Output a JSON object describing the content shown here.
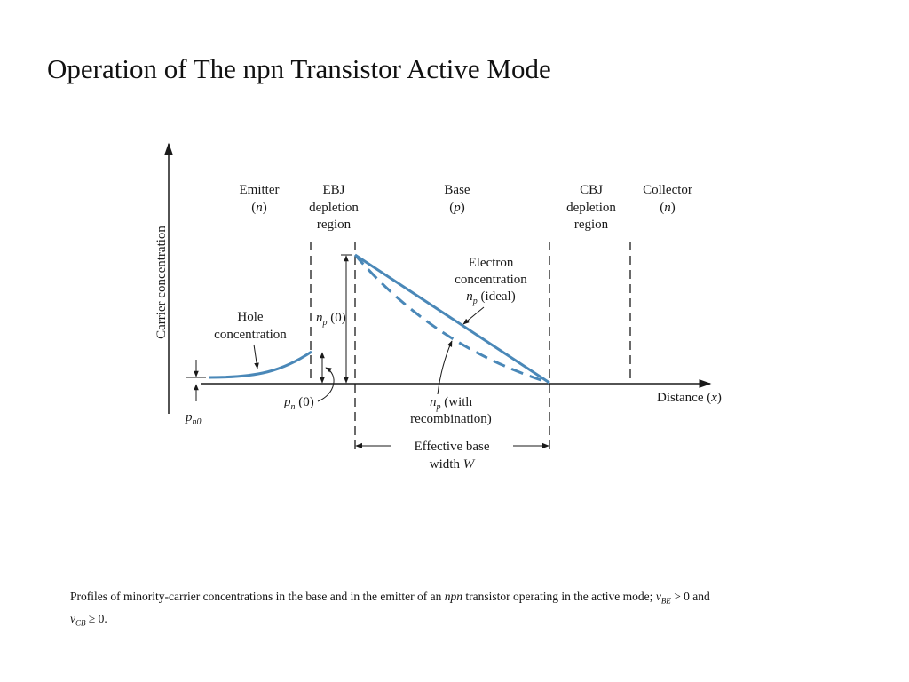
{
  "slide": {
    "title": "Operation of The npn Transistor Active Mode"
  },
  "diagram": {
    "y_axis_label": "Carrier concentration",
    "x_axis_label_text": "Distance (",
    "x_axis_label_var": "x",
    "x_axis_label_close": ")",
    "regions": {
      "emitter_line1": "Emitter",
      "emitter_line2_open": "(",
      "emitter_line2_var": "n",
      "emitter_line2_close": ")",
      "ebj_line1": "EBJ",
      "ebj_line2": "depletion",
      "ebj_line3": "region",
      "base_line1": "Base",
      "base_line2_open": "(",
      "base_line2_var": "p",
      "base_line2_close": ")",
      "cbj_line1": "CBJ",
      "cbj_line2": "depletion",
      "cbj_line3": "region",
      "collector_line1": "Collector",
      "collector_line2_open": "(",
      "collector_line2_var": "n",
      "collector_line2_close": ")"
    },
    "annotations": {
      "hole_line1": "Hole",
      "hole_line2": "concentration",
      "electron_line1": "Electron",
      "electron_line2": "concentration",
      "electron_line3_var": "n",
      "electron_line3_sub": "p",
      "electron_line3_rest": " (ideal)",
      "np0_var": "n",
      "np0_sub": "p",
      "np0_rest": " (0)",
      "pn0_var": "p",
      "pn0_sub": "n",
      "pn0_rest": " (0)",
      "pno_var": "p",
      "pno_sub": "n0",
      "recomb_line1_var": "n",
      "recomb_line1_sub": "p",
      "recomb_line1_rest": " (with",
      "recomb_line2": "recombination)",
      "width_line1": "Effective base",
      "width_line2_text": "width ",
      "width_line2_var": "W"
    },
    "curve_color": "#4a88b8"
  },
  "caption": {
    "part1": "Profiles of minority-carrier concentrations in the base and in the emitter of an ",
    "npn": "npn",
    "part2": " transistor operating in the active mode; ",
    "v1": "v",
    "v1_sub": "BE",
    "part3": " > 0 and",
    "v2": "v",
    "v2_sub": "CB",
    "part4": " ≥ 0."
  }
}
